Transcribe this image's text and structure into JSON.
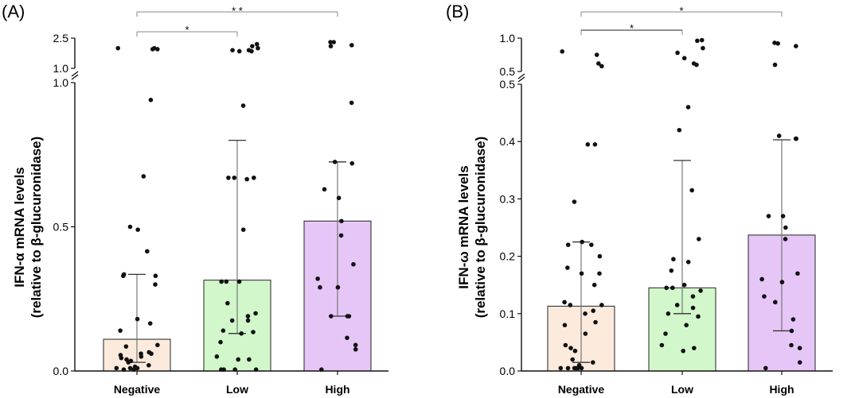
{
  "chart_data": [
    {
      "type": "bar",
      "panel_label": "(A)",
      "ylabel_lines": [
        "IFN-α mRNA levels",
        "(relative to β-glucuronidase)"
      ],
      "categories": [
        "Negative",
        "Low",
        "High"
      ],
      "bar_colors": [
        "#fcebdd",
        "#d2f7cb",
        "#e6c6f7"
      ],
      "values": [
        0.11,
        0.315,
        0.52
      ],
      "error_low": [
        0.03,
        0.13,
        0.19
      ],
      "error_high": [
        0.335,
        0.8,
        0.725
      ],
      "y_lower_range": [
        0,
        1.0
      ],
      "y_upper_range": [
        1.0,
        2.5
      ],
      "y_axis_break": true,
      "y_lower_ticks": [
        {
          "value": 0,
          "label": "0.0"
        },
        {
          "value": 0.5,
          "label": "0.5"
        },
        {
          "value": 1.0,
          "label": "1.0"
        }
      ],
      "y_upper_ticks": [
        {
          "value": 1.0,
          "label": "1.0"
        },
        {
          "value": 2.5,
          "label": "2.5"
        }
      ],
      "points": [
        [
          2.0,
          1.95,
          2.0,
          1.95,
          0.94,
          0.675,
          0.5,
          0.49,
          0.415,
          0.335,
          0.33,
          0.33,
          0.3,
          0.18,
          0.165,
          0.14,
          0.09,
          0.085,
          0.065,
          0.06,
          0.06,
          0.055,
          0.05,
          0.045,
          0.04,
          0.035,
          0.03,
          0.02,
          0.015,
          0.01,
          0.01,
          0.005,
          0.005,
          0.01
        ],
        [
          2.2,
          2.1,
          2.0,
          1.9,
          1.85,
          1.9,
          1.85,
          0.92,
          0.67,
          0.665,
          0.67,
          0.67,
          0.49,
          0.31,
          0.31,
          0.31,
          0.235,
          0.2,
          0.19,
          0.175,
          0.175,
          0.14,
          0.135,
          0.13,
          0.1,
          0.05,
          0.04,
          0.04,
          0.005,
          0.005,
          0.005,
          0.005
        ],
        [
          2.3,
          2.3,
          2.15,
          2.1,
          0.93,
          0.725,
          0.72,
          0.63,
          0.6,
          0.52,
          0.47,
          0.37,
          0.32,
          0.29,
          0.29,
          0.19,
          0.19,
          0.19,
          0.115,
          0.09,
          0.075,
          0.005
        ]
      ],
      "significance": [
        {
          "from": 0,
          "to": 1,
          "label": "*"
        },
        {
          "from": 0,
          "to": 2,
          "label": "* *"
        }
      ]
    },
    {
      "type": "bar",
      "panel_label": "(B)",
      "ylabel_lines": [
        "IFN-ω mRNA levels",
        "(relative to β-glucuronidase)"
      ],
      "categories": [
        "Negative",
        "Low",
        "High"
      ],
      "bar_colors": [
        "#fcebdd",
        "#d2f7cb",
        "#e6c6f7"
      ],
      "values": [
        0.113,
        0.145,
        0.237
      ],
      "error_low": [
        0.015,
        0.1,
        0.07
      ],
      "error_high": [
        0.225,
        0.367,
        0.403
      ],
      "y_lower_range": [
        0,
        0.5
      ],
      "y_upper_range": [
        0.5,
        1.0
      ],
      "y_axis_break": true,
      "y_lower_ticks": [
        {
          "value": 0,
          "label": "0.0"
        },
        {
          "value": 0.1,
          "label": "0.1"
        },
        {
          "value": 0.2,
          "label": "0.2"
        },
        {
          "value": 0.3,
          "label": "0.3"
        },
        {
          "value": 0.4,
          "label": "0.4"
        },
        {
          "value": 0.5,
          "label": "0.5"
        }
      ],
      "y_upper_ticks": [
        {
          "value": 0.5,
          "label": "0.5"
        },
        {
          "value": 1.0,
          "label": "1.0"
        }
      ],
      "points": [
        [
          0.8,
          0.75,
          0.62,
          0.58,
          0.395,
          0.395,
          0.295,
          0.225,
          0.22,
          0.22,
          0.2,
          0.18,
          0.17,
          0.17,
          0.15,
          0.12,
          0.115,
          0.115,
          0.105,
          0.1,
          0.085,
          0.08,
          0.065,
          0.045,
          0.04,
          0.035,
          0.02,
          0.015,
          0.01,
          0.005,
          0.005,
          0.005,
          0.005,
          0.005,
          0.005
        ],
        [
          0.97,
          0.96,
          0.85,
          0.78,
          0.7,
          0.62,
          0.6,
          0.46,
          0.42,
          0.315,
          0.23,
          0.195,
          0.19,
          0.175,
          0.15,
          0.145,
          0.145,
          0.14,
          0.13,
          0.115,
          0.11,
          0.1,
          0.095,
          0.08,
          0.065,
          0.045,
          0.04,
          0.035
        ],
        [
          0.93,
          0.92,
          0.88,
          0.6,
          0.405,
          0.41,
          0.405,
          0.27,
          0.27,
          0.25,
          0.23,
          0.17,
          0.16,
          0.155,
          0.13,
          0.12,
          0.09,
          0.07,
          0.045,
          0.04,
          0.015,
          0.005
        ]
      ],
      "significance": [
        {
          "from": 0,
          "to": 1,
          "label": "*"
        },
        {
          "from": 0,
          "to": 2,
          "label": "*"
        }
      ]
    }
  ]
}
